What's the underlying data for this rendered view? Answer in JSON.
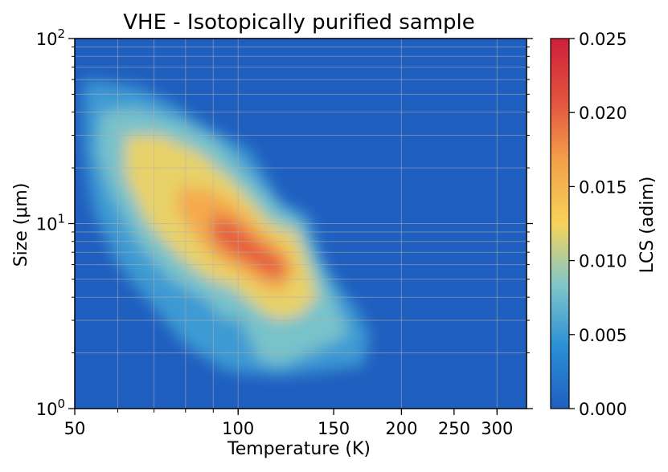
{
  "chart_data": {
    "type": "heatmap",
    "title": "VHE - Isotopically purified sample",
    "xlabel": "Temperature (K)",
    "ylabel": "Size (μm)",
    "x_scale": "log",
    "y_scale": "log",
    "xlim": [
      50,
      340
    ],
    "ylim": [
      1,
      100
    ],
    "x_ticks": [
      50,
      100,
      150,
      200,
      250,
      300
    ],
    "x_tick_labels": [
      "50",
      "100",
      "150",
      "200",
      "250",
      "300"
    ],
    "y_ticks": [
      1,
      10,
      100
    ],
    "y_tick_labels": [
      "10^0",
      "10^1",
      "10^2"
    ],
    "grid": true,
    "colorbar": {
      "label": "LCS (adim)",
      "range": [
        0.0,
        0.025
      ],
      "ticks": [
        "0.000",
        "0.005",
        "0.010",
        "0.015",
        "0.020",
        "0.025"
      ],
      "colors": [
        "#1f5fbf",
        "#2b8fd6",
        "#7fc6c9",
        "#f6d35a",
        "#f4a24a",
        "#e2523f",
        "#cf1f3a"
      ]
    },
    "contour_regions": [
      {
        "level": 0.005,
        "polygon_temperature_size": [
          [
            52,
            60
          ],
          [
            65,
            55
          ],
          [
            75,
            45
          ],
          [
            85,
            35
          ],
          [
            105,
            25
          ],
          [
            120,
            13
          ],
          [
            135,
            11
          ],
          [
            142,
            6.5
          ],
          [
            150,
            5
          ],
          [
            165,
            3.5
          ],
          [
            175,
            2.5
          ],
          [
            170,
            1.7
          ],
          [
            120,
            1.5
          ],
          [
            95,
            1.6
          ],
          [
            80,
            2.2
          ],
          [
            70,
            3.5
          ],
          [
            60,
            6
          ],
          [
            54,
            12
          ],
          [
            52,
            25
          ]
        ]
      },
      {
        "level": 0.008,
        "polygon_temperature_size": [
          [
            56,
            40
          ],
          [
            65,
            42
          ],
          [
            80,
            35
          ],
          [
            92,
            28
          ],
          [
            105,
            18
          ],
          [
            120,
            12
          ],
          [
            130,
            10.5
          ],
          [
            140,
            6.5
          ],
          [
            147,
            4.6
          ],
          [
            160,
            2.5
          ],
          [
            140,
            2.1
          ],
          [
            120,
            1.7
          ],
          [
            110,
            1.8
          ],
          [
            100,
            3.2
          ],
          [
            95,
            3
          ],
          [
            88,
            3.8
          ],
          [
            75,
            5
          ],
          [
            66,
            7.5
          ],
          [
            58,
            15
          ],
          [
            55,
            25
          ]
        ]
      },
      {
        "level": 0.012,
        "polygon_temperature_size": [
          [
            62,
            30
          ],
          [
            72,
            30
          ],
          [
            85,
            24
          ],
          [
            100,
            16
          ],
          [
            115,
            10
          ],
          [
            128,
            9
          ],
          [
            136,
            5.5
          ],
          [
            140,
            4
          ],
          [
            130,
            3.2
          ],
          [
            118,
            3
          ],
          [
            108,
            3.5
          ],
          [
            98,
            4.5
          ],
          [
            88,
            5
          ],
          [
            78,
            6.5
          ],
          [
            68,
            10
          ],
          [
            62,
            18
          ]
        ]
      },
      {
        "level": 0.016,
        "polygon_temperature_size": [
          [
            78,
            16
          ],
          [
            90,
            15
          ],
          [
            100,
            12.5
          ],
          [
            112,
            9
          ],
          [
            122,
            7.5
          ],
          [
            128,
            5.5
          ],
          [
            120,
            4.2
          ],
          [
            110,
            4.6
          ],
          [
            100,
            5.5
          ],
          [
            90,
            6.5
          ],
          [
            82,
            9
          ],
          [
            77,
            12
          ]
        ]
      },
      {
        "level": 0.02,
        "polygon_temperature_size": [
          [
            90,
            11.5
          ],
          [
            100,
            10
          ],
          [
            110,
            7.8
          ],
          [
            120,
            6.5
          ],
          [
            124,
            5.4
          ],
          [
            115,
            5
          ],
          [
            105,
            6
          ],
          [
            95,
            7
          ],
          [
            89,
            8.5
          ]
        ]
      }
    ]
  }
}
